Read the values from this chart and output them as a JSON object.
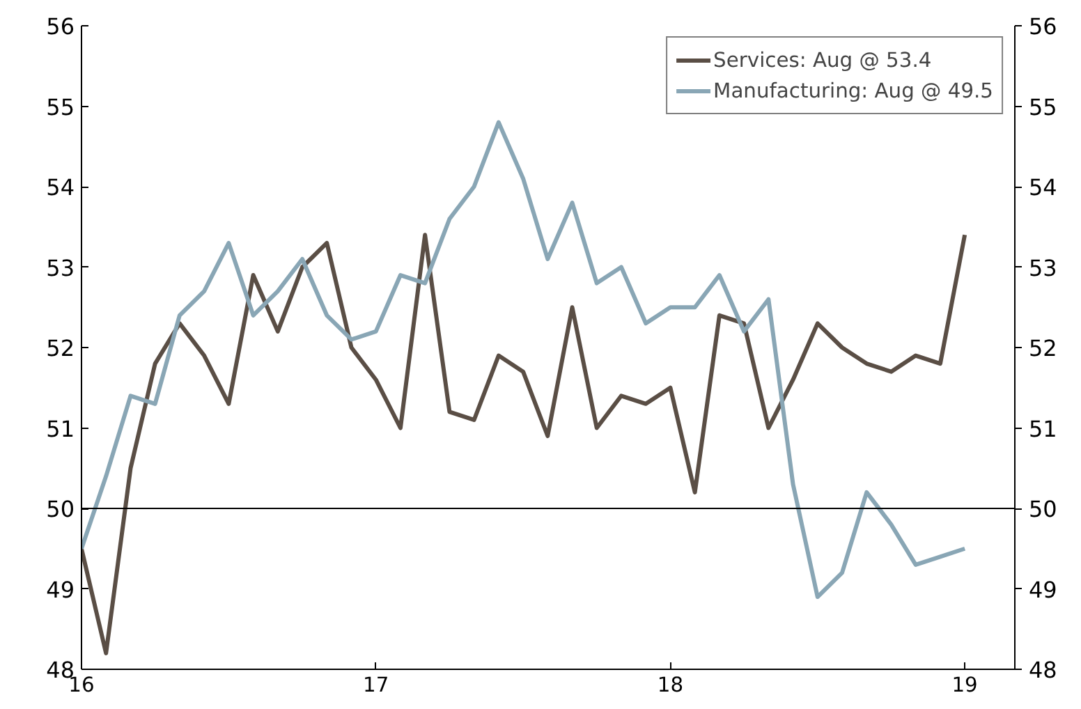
{
  "chart_data": {
    "type": "line",
    "x": [
      16,
      16.0833,
      16.1667,
      16.25,
      16.3333,
      16.4167,
      16.5,
      16.5833,
      16.6667,
      16.75,
      16.8333,
      16.9167,
      17,
      17.0833,
      17.1667,
      17.25,
      17.3333,
      17.4167,
      17.5,
      17.5833,
      17.6667,
      17.75,
      17.8333,
      17.9167,
      18,
      18.0833,
      18.1667,
      18.25,
      18.3333,
      18.4167,
      18.5,
      18.5833,
      18.6667,
      18.75,
      18.8333,
      18.9167,
      19
    ],
    "series": [
      {
        "name": "Services: Aug @ 53.4",
        "color": "#5a4e45",
        "values": [
          49.5,
          48.2,
          50.5,
          51.8,
          52.3,
          51.9,
          51.3,
          52.9,
          52.2,
          53.0,
          53.3,
          52.0,
          51.6,
          51.0,
          53.4,
          51.2,
          51.1,
          51.9,
          51.7,
          50.9,
          52.5,
          51.0,
          51.4,
          51.3,
          51.5,
          50.2,
          52.4,
          52.3,
          51.0,
          51.6,
          52.3,
          52.0,
          51.8,
          51.7,
          51.9,
          51.8,
          53.4
        ]
      },
      {
        "name": "Manufacturing: Aug @ 49.5",
        "color": "#89a6b5",
        "values": [
          49.5,
          50.4,
          51.4,
          51.3,
          52.4,
          52.7,
          53.3,
          52.4,
          52.7,
          53.1,
          52.4,
          52.1,
          52.2,
          52.9,
          52.8,
          53.6,
          54.0,
          54.8,
          54.1,
          53.1,
          53.8,
          52.8,
          53.0,
          52.3,
          52.5,
          52.5,
          52.9,
          52.2,
          52.6,
          50.3,
          48.9,
          49.2,
          50.2,
          49.8,
          49.3,
          49.4,
          49.5
        ]
      }
    ],
    "xlim": [
      16,
      19.17
    ],
    "xticks": [
      16,
      17,
      18,
      19
    ],
    "ylim": [
      48,
      56
    ],
    "yticks": [
      48,
      49,
      50,
      51,
      52,
      53,
      54,
      55,
      56
    ],
    "y2lim": [
      48,
      56
    ],
    "y2ticks": [
      48,
      49,
      50,
      51,
      52,
      53,
      54,
      55,
      56
    ],
    "ref_lines": [
      {
        "axis": "y",
        "value": 50,
        "color": "#000000"
      }
    ],
    "grid": false,
    "legend": "top right",
    "marker": "none",
    "line_style": "solid"
  }
}
